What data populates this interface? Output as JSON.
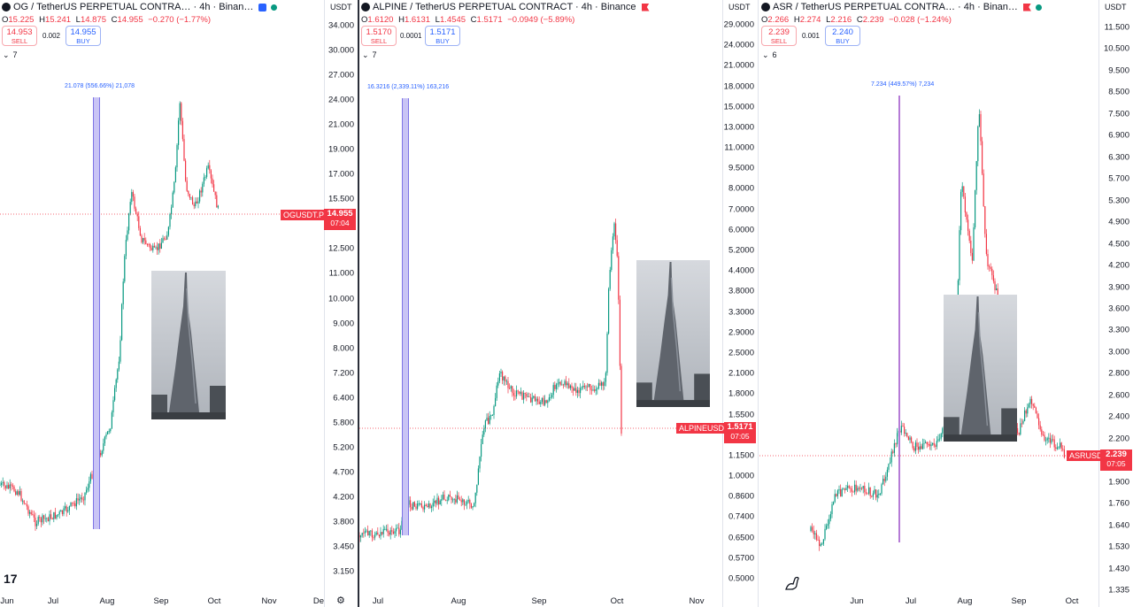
{
  "panels": [
    {
      "id": "og",
      "title": "OG / TetherUS PERPETUAL CONTRA… · 4h · Binan…",
      "flag": "blue",
      "ohlc": {
        "o": "15.225",
        "h": "15.241",
        "l": "14.875",
        "c": "14.955",
        "chg": "−0.270 (−1.77%)"
      },
      "sell": {
        "price": "14.953",
        "label": "SELL"
      },
      "spread": "0.002",
      "buy": {
        "price": "14.955",
        "label": "BUY"
      },
      "indicators": "7",
      "unit": "USDT",
      "ticks": [
        "34.000",
        "30.000",
        "27.000",
        "24.000",
        "21.000",
        "19.000",
        "17.000",
        "15.500",
        "14.000",
        "12.500",
        "11.000",
        "10.000",
        "9.000",
        "8.000",
        "7.200",
        "6.400",
        "5.800",
        "5.200",
        "4.700",
        "4.200",
        "3.800",
        "3.450",
        "3.150"
      ],
      "price_label": "OGUSDT.P",
      "price": "14.955",
      "countdown": "07:04",
      "measure": "21.078 (556.66%) 21,078",
      "x_labels": [
        "Jun",
        "Jul",
        "Aug",
        "Sep",
        "Oct",
        "Nov",
        "De"
      ]
    },
    {
      "id": "alpine",
      "title": "ALPINE / TetherUS PERPETUAL CONTRACT · 4h · Binance",
      "flag": "red",
      "ohlc": {
        "o": "1.6120",
        "h": "1.6131",
        "l": "1.4545",
        "c": "1.5171",
        "chg": "−0.0949 (−5.89%)"
      },
      "sell": {
        "price": "1.5170",
        "label": "SELL"
      },
      "spread": "0.0001",
      "buy": {
        "price": "1.5171",
        "label": "BUY"
      },
      "indicators": "7",
      "unit": "USDT",
      "ticks": [
        "29.0000",
        "24.0000",
        "21.0000",
        "18.0000",
        "15.0000",
        "13.0000",
        "11.0000",
        "9.5000",
        "8.0000",
        "7.0000",
        "6.0000",
        "5.2000",
        "4.4000",
        "3.8000",
        "3.3000",
        "2.9000",
        "2.5000",
        "2.1000",
        "1.8000",
        "1.5500",
        "1.3500",
        "1.1500",
        "1.0000",
        "0.8600",
        "0.7400",
        "0.6500",
        "0.5700",
        "0.5000"
      ],
      "price_label": "ALPINEUSDT.P",
      "price": "1.5171",
      "countdown": "07:05",
      "measure": "16.3216 (2,339.11%) 163,216",
      "x_labels": [
        "Jul",
        "Aug",
        "Sep",
        "Oct",
        "Nov"
      ]
    },
    {
      "id": "asr",
      "title": "ASR / TetherUS PERPETUAL CONTRA… · 4h · Binan…",
      "flag": "red",
      "ohlc": {
        "o": "2.266",
        "h": "2.274",
        "l": "2.216",
        "c": "2.239",
        "chg": "−0.028 (−1.24%)"
      },
      "sell": {
        "price": "2.239",
        "label": "SELL"
      },
      "spread": "0.001",
      "buy": {
        "price": "2.240",
        "label": "BUY"
      },
      "indicators": "6",
      "unit": "USDT",
      "ticks": [
        "11.500",
        "10.500",
        "9.500",
        "8.500",
        "7.500",
        "6.900",
        "6.300",
        "5.700",
        "5.300",
        "4.900",
        "4.500",
        "4.200",
        "3.900",
        "3.600",
        "3.300",
        "3.000",
        "2.800",
        "2.600",
        "2.400",
        "2.200",
        "2.050",
        "1.900",
        "1.760",
        "1.640",
        "1.530",
        "1.430",
        "1.335"
      ],
      "price_label": "ASRUSDT.P",
      "price": "2.239",
      "countdown": "07:05",
      "measure": "7.234 (449.57%) 7,234",
      "x_labels": [
        "Jun",
        "Jul",
        "Aug",
        "Sep",
        "Oct"
      ]
    }
  ],
  "brand": "17",
  "colors": {
    "up": "#089981",
    "down": "#f23645",
    "accent": "#2962ff",
    "measure": "#b2b5f7"
  },
  "icons": [
    "gear-icon",
    "dinosaur-icon"
  ]
}
